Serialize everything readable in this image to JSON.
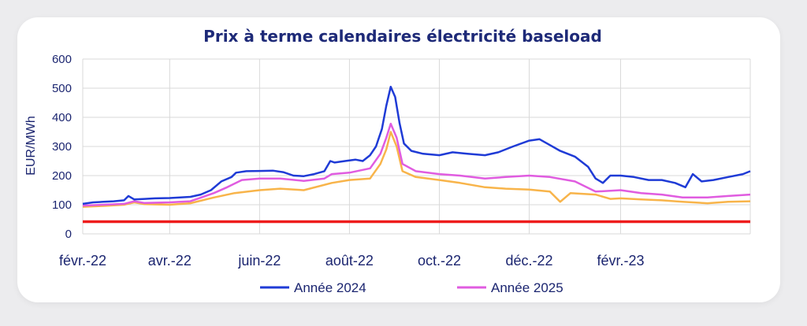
{
  "chart_data": {
    "type": "line",
    "title": "Prix à terme calendaires électricité baseload",
    "ylabel": "EUR/MWh",
    "xlabel": "",
    "ylim": [
      0,
      600
    ],
    "yticks": [
      "0",
      "100",
      "200",
      "300",
      "400",
      "500",
      "600"
    ],
    "xlim": [
      "2022-02-01",
      "2023-04-30"
    ],
    "xticks": [
      {
        "label": "févr.-22",
        "date": "2022-02-01"
      },
      {
        "label": "avr.-22",
        "date": "2022-04-01"
      },
      {
        "label": "juin-22",
        "date": "2022-06-01"
      },
      {
        "label": "août-22",
        "date": "2022-08-01"
      },
      {
        "label": "oct.-22",
        "date": "2022-10-01"
      },
      {
        "label": "déc.-22",
        "date": "2022-12-01"
      },
      {
        "label": "févr.-23",
        "date": "2023-02-01"
      }
    ],
    "grid": true,
    "legend": "bottom",
    "series": [
      {
        "name": "Année 2024",
        "color": "#1f3bd6",
        "points": [
          [
            "2022-02-01",
            103
          ],
          [
            "2022-02-08",
            108
          ],
          [
            "2022-02-15",
            110
          ],
          [
            "2022-02-22",
            112
          ],
          [
            "2022-03-01",
            115
          ],
          [
            "2022-03-04",
            130
          ],
          [
            "2022-03-08",
            118
          ],
          [
            "2022-03-15",
            120
          ],
          [
            "2022-03-22",
            122
          ],
          [
            "2022-04-01",
            123
          ],
          [
            "2022-04-08",
            125
          ],
          [
            "2022-04-15",
            127
          ],
          [
            "2022-04-22",
            135
          ],
          [
            "2022-04-29",
            150
          ],
          [
            "2022-05-06",
            180
          ],
          [
            "2022-05-13",
            195
          ],
          [
            "2022-05-16",
            210
          ],
          [
            "2022-05-23",
            215
          ],
          [
            "2022-06-01",
            216
          ],
          [
            "2022-06-10",
            217
          ],
          [
            "2022-06-17",
            212
          ],
          [
            "2022-06-24",
            200
          ],
          [
            "2022-07-01",
            198
          ],
          [
            "2022-07-08",
            205
          ],
          [
            "2022-07-15",
            215
          ],
          [
            "2022-07-19",
            250
          ],
          [
            "2022-07-22",
            245
          ],
          [
            "2022-07-29",
            250
          ],
          [
            "2022-08-05",
            255
          ],
          [
            "2022-08-10",
            250
          ],
          [
            "2022-08-15",
            270
          ],
          [
            "2022-08-19",
            300
          ],
          [
            "2022-08-23",
            360
          ],
          [
            "2022-08-26",
            440
          ],
          [
            "2022-08-29",
            505
          ],
          [
            "2022-09-01",
            470
          ],
          [
            "2022-09-04",
            380
          ],
          [
            "2022-09-07",
            310
          ],
          [
            "2022-09-12",
            285
          ],
          [
            "2022-09-20",
            275
          ],
          [
            "2022-10-01",
            270
          ],
          [
            "2022-10-10",
            280
          ],
          [
            "2022-10-20",
            275
          ],
          [
            "2022-11-01",
            270
          ],
          [
            "2022-11-10",
            280
          ],
          [
            "2022-11-20",
            300
          ],
          [
            "2022-12-01",
            320
          ],
          [
            "2022-12-08",
            325
          ],
          [
            "2022-12-15",
            305
          ],
          [
            "2022-12-22",
            285
          ],
          [
            "2023-01-01",
            265
          ],
          [
            "2023-01-10",
            230
          ],
          [
            "2023-01-15",
            190
          ],
          [
            "2023-01-20",
            175
          ],
          [
            "2023-01-25",
            200
          ],
          [
            "2023-02-01",
            200
          ],
          [
            "2023-02-10",
            195
          ],
          [
            "2023-02-20",
            185
          ],
          [
            "2023-03-01",
            185
          ],
          [
            "2023-03-10",
            175
          ],
          [
            "2023-03-17",
            160
          ],
          [
            "2023-03-22",
            205
          ],
          [
            "2023-03-28",
            180
          ],
          [
            "2023-04-05",
            185
          ],
          [
            "2023-04-15",
            195
          ],
          [
            "2023-04-25",
            205
          ],
          [
            "2023-04-30",
            215
          ]
        ]
      },
      {
        "name": "Année 2025",
        "color": "#e05ce0",
        "points": [
          [
            "2022-02-01",
            97
          ],
          [
            "2022-02-15",
            100
          ],
          [
            "2022-03-01",
            103
          ],
          [
            "2022-03-08",
            112
          ],
          [
            "2022-03-15",
            106
          ],
          [
            "2022-04-01",
            108
          ],
          [
            "2022-04-15",
            112
          ],
          [
            "2022-05-01",
            140
          ],
          [
            "2022-05-10",
            160
          ],
          [
            "2022-05-20",
            185
          ],
          [
            "2022-06-01",
            190
          ],
          [
            "2022-06-15",
            190
          ],
          [
            "2022-07-01",
            182
          ],
          [
            "2022-07-15",
            190
          ],
          [
            "2022-07-20",
            205
          ],
          [
            "2022-08-01",
            210
          ],
          [
            "2022-08-15",
            225
          ],
          [
            "2022-08-22",
            275
          ],
          [
            "2022-08-26",
            330
          ],
          [
            "2022-08-29",
            378
          ],
          [
            "2022-09-02",
            330
          ],
          [
            "2022-09-06",
            240
          ],
          [
            "2022-09-15",
            215
          ],
          [
            "2022-10-01",
            205
          ],
          [
            "2022-10-15",
            200
          ],
          [
            "2022-11-01",
            190
          ],
          [
            "2022-11-15",
            195
          ],
          [
            "2022-12-01",
            200
          ],
          [
            "2022-12-15",
            195
          ],
          [
            "2023-01-01",
            180
          ],
          [
            "2023-01-15",
            145
          ],
          [
            "2023-02-01",
            150
          ],
          [
            "2023-02-15",
            140
          ],
          [
            "2023-03-01",
            135
          ],
          [
            "2023-03-15",
            125
          ],
          [
            "2023-04-01",
            125
          ],
          [
            "2023-04-15",
            130
          ],
          [
            "2023-04-30",
            135
          ]
        ]
      },
      {
        "color": "#f8b44a",
        "points": [
          [
            "2022-02-01",
            93
          ],
          [
            "2022-02-15",
            96
          ],
          [
            "2022-03-01",
            100
          ],
          [
            "2022-03-08",
            108
          ],
          [
            "2022-03-15",
            102
          ],
          [
            "2022-04-01",
            100
          ],
          [
            "2022-04-15",
            105
          ],
          [
            "2022-05-01",
            125
          ],
          [
            "2022-05-15",
            140
          ],
          [
            "2022-06-01",
            150
          ],
          [
            "2022-06-15",
            155
          ],
          [
            "2022-07-01",
            150
          ],
          [
            "2022-07-20",
            175
          ],
          [
            "2022-08-01",
            185
          ],
          [
            "2022-08-15",
            190
          ],
          [
            "2022-08-22",
            240
          ],
          [
            "2022-08-26",
            290
          ],
          [
            "2022-08-29",
            350
          ],
          [
            "2022-09-02",
            300
          ],
          [
            "2022-09-06",
            215
          ],
          [
            "2022-09-15",
            195
          ],
          [
            "2022-10-01",
            185
          ],
          [
            "2022-10-15",
            175
          ],
          [
            "2022-11-01",
            160
          ],
          [
            "2022-11-15",
            155
          ],
          [
            "2022-12-01",
            152
          ],
          [
            "2022-12-15",
            145
          ],
          [
            "2022-12-22",
            110
          ],
          [
            "2022-12-29",
            140
          ],
          [
            "2023-01-15",
            135
          ],
          [
            "2023-01-25",
            120
          ],
          [
            "2023-02-01",
            122
          ],
          [
            "2023-02-15",
            118
          ],
          [
            "2023-03-01",
            115
          ],
          [
            "2023-03-15",
            110
          ],
          [
            "2023-04-01",
            105
          ],
          [
            "2023-04-15",
            110
          ],
          [
            "2023-04-30",
            112
          ]
        ]
      },
      {
        "color": "#ee1c1c",
        "points": [
          [
            "2022-02-01",
            42
          ],
          [
            "2023-04-30",
            42
          ]
        ]
      }
    ]
  }
}
